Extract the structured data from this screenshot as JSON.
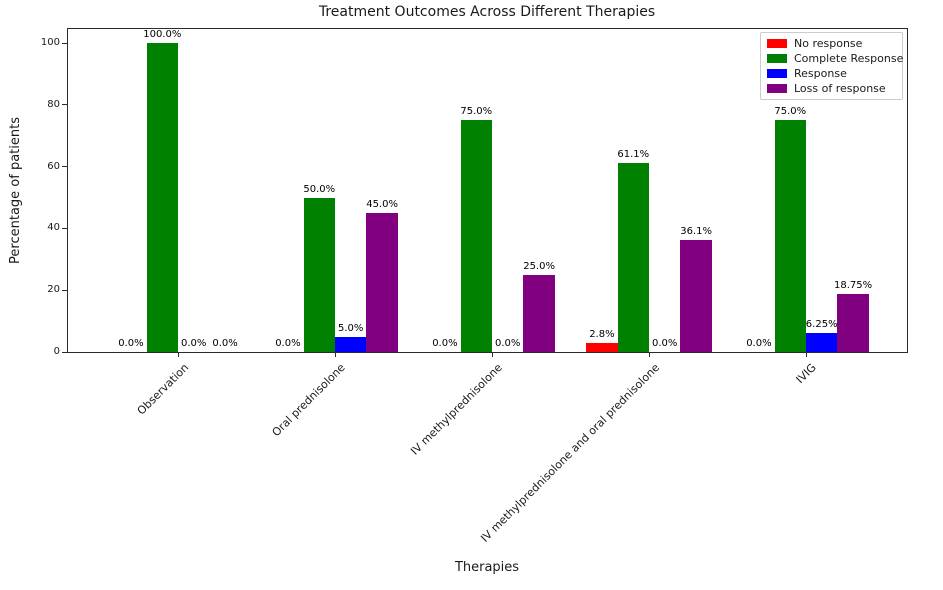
{
  "chart_data": {
    "type": "bar",
    "title": "Treatment Outcomes Across Different Therapies",
    "xlabel": "Therapies",
    "ylabel": "Percentage of patients",
    "categories": [
      "Observation",
      "Oral prednisolone",
      "IV methylprednisolone",
      "IV methylprednisolone and oral prednisolone",
      "IVIG"
    ],
    "series": [
      {
        "name": "No response",
        "color": "#ff0000",
        "values": [
          0.0,
          0.0,
          0.0,
          2.8,
          0.0
        ],
        "labels": [
          "0.0%",
          "0.0%",
          "0.0%",
          "2.8%",
          "0.0%"
        ]
      },
      {
        "name": "Complete Response",
        "color": "#008000",
        "values": [
          100.0,
          50.0,
          75.0,
          61.1,
          75.0
        ],
        "labels": [
          "100.0%",
          "50.0%",
          "75.0%",
          "61.1%",
          "75.0%"
        ]
      },
      {
        "name": "Response",
        "color": "#0000ff",
        "values": [
          0.0,
          5.0,
          0.0,
          0.0,
          6.25
        ],
        "labels": [
          "0.0%",
          "5.0%",
          "0.0%",
          "0.0%",
          "6.25%"
        ]
      },
      {
        "name": "Loss of response",
        "color": "#800080",
        "values": [
          0.0,
          45.0,
          25.0,
          36.1,
          18.75
        ],
        "labels": [
          "0.0%",
          "45.0%",
          "25.0%",
          "36.1%",
          "18.75%"
        ]
      }
    ],
    "yticks": [
      0,
      20,
      40,
      60,
      80,
      100
    ],
    "ylim": [
      0,
      105
    ],
    "grid": false,
    "legend_position": "upper right",
    "axis_color": "#2b2b2b",
    "text_color": "#1a1a1a"
  }
}
